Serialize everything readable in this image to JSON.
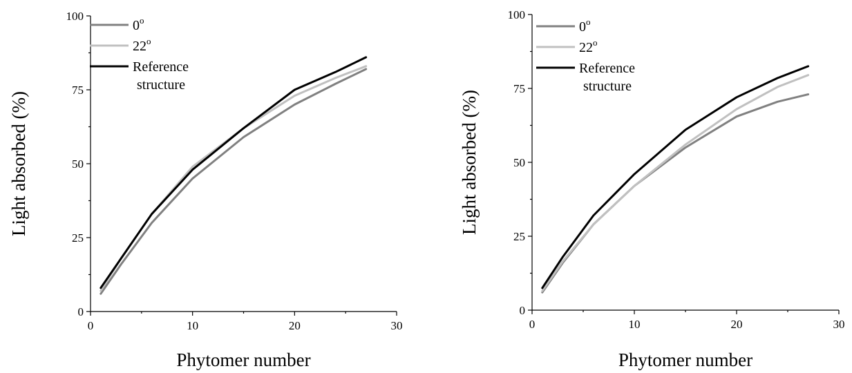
{
  "chart_data": [
    {
      "type": "line",
      "title": "",
      "xlabel": "Phytomer number",
      "ylabel": "Light absorbed (%)",
      "xlim": [
        0,
        30
      ],
      "ylim": [
        0,
        100
      ],
      "x_ticks": [
        "0",
        "10",
        "20",
        "30"
      ],
      "y_ticks": [
        "0",
        "25",
        "50",
        "75",
        "100"
      ],
      "legend_placement": "top-left",
      "grid": false,
      "series": [
        {
          "name": "0",
          "name_sup": "o",
          "color": "#808080",
          "x": [
            1,
            3,
            6,
            10,
            15,
            20,
            24,
            27
          ],
          "y": [
            6,
            16,
            30,
            45,
            59,
            70,
            77,
            82
          ]
        },
        {
          "name": "22",
          "name_sup": "o",
          "color": "#c0c0c0",
          "x": [
            1,
            3,
            6,
            10,
            15,
            20,
            24,
            27
          ],
          "y": [
            7,
            18,
            33,
            49,
            62,
            73,
            79,
            83
          ]
        },
        {
          "name": "Reference structure",
          "name_lines": [
            "Reference",
            "structure"
          ],
          "color": "#000000",
          "x": [
            1,
            3,
            6,
            10,
            15,
            20,
            24,
            27
          ],
          "y": [
            8,
            18,
            33,
            48,
            62,
            75,
            81,
            86
          ]
        }
      ]
    },
    {
      "type": "line",
      "title": "",
      "xlabel": "Phytomer number",
      "ylabel": "Light absorbed (%)",
      "xlim": [
        0,
        30
      ],
      "ylim": [
        0,
        100
      ],
      "x_ticks": [
        "0",
        "10",
        "20",
        "30"
      ],
      "y_ticks": [
        "0",
        "25",
        "50",
        "75",
        "100"
      ],
      "legend_placement": "top-left",
      "grid": false,
      "series": [
        {
          "name": "0",
          "name_sup": "o",
          "color": "#808080",
          "x": [
            1,
            3,
            6,
            10,
            15,
            20,
            24,
            27
          ],
          "y": [
            6,
            16,
            29,
            42,
            55,
            65.5,
            70.5,
            73
          ]
        },
        {
          "name": "22",
          "name_sup": "o",
          "color": "#c0c0c0",
          "x": [
            1,
            3,
            6,
            10,
            15,
            20,
            24,
            27
          ],
          "y": [
            6.5,
            16.5,
            29,
            42,
            56,
            68,
            75.5,
            79.5
          ]
        },
        {
          "name": "Reference structure",
          "name_lines": [
            "Reference",
            "structure"
          ],
          "color": "#000000",
          "x": [
            1,
            3,
            6,
            10,
            15,
            20,
            24,
            27
          ],
          "y": [
            7.5,
            18,
            32,
            46,
            61,
            72,
            78.5,
            82.5
          ]
        }
      ]
    }
  ]
}
